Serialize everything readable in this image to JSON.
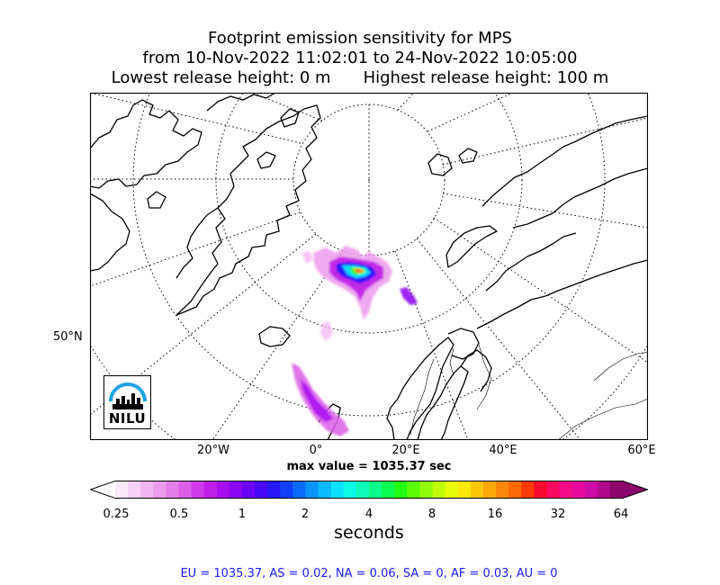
{
  "title": {
    "line1": "Footprint emission sensitivity for MPS",
    "line2": "from 10-Nov-2022 11:02:01 to 24-Nov-2022 10:05:00",
    "line3_left": "Lowest release height: 0 m",
    "line3_right": "Highest release height: 100 m"
  },
  "map": {
    "projection": "north-polar-stereographic",
    "lat_labels": [
      "50°N"
    ],
    "lon_labels": [
      "20°W",
      "0°",
      "20°E",
      "40°E",
      "60°E"
    ],
    "graticule": "dotted",
    "coastline_color": "#000000",
    "border_color": "#000000"
  },
  "max_value": "max value = 1035.37 sec",
  "colorbar": {
    "tick_labels": [
      "0.25",
      "0.5",
      "1",
      "2",
      "4",
      "8",
      "16",
      "32",
      "64"
    ],
    "label": "seconds",
    "scale": "log2",
    "colors": [
      "#fbe8fb",
      "#f8d0f8",
      "#f2b4f2",
      "#ec9aec",
      "#e47ee8",
      "#dc5ee8",
      "#cf3ae8",
      "#bf1ee8",
      "#a80ef0",
      "#8a06f4",
      "#6a06f8",
      "#4808fa",
      "#2818fb",
      "#1040fb",
      "#0a6afb",
      "#0a94fb",
      "#0abcfb",
      "#0ae0fb",
      "#0afbe8",
      "#0afbb8",
      "#0afb88",
      "#0afb50",
      "#20fb10",
      "#5cfb08",
      "#90fb08",
      "#c0fb08",
      "#e8fb08",
      "#fbe808",
      "#fbc808",
      "#fba808",
      "#fb8808",
      "#fb6808",
      "#fb3a08",
      "#fb0a30",
      "#fb0a60",
      "#f50a88",
      "#e80aa0",
      "#d00aa8",
      "#b0088c",
      "#8a066c"
    ]
  },
  "regions_text": "EU = 1035.37,  AS = 0.02,  NA = 0.06,  SA = 0,  AF = 0.03,  AU = 0",
  "logo": {
    "text": "NILU",
    "arc_color": "#1aa3e8"
  }
}
